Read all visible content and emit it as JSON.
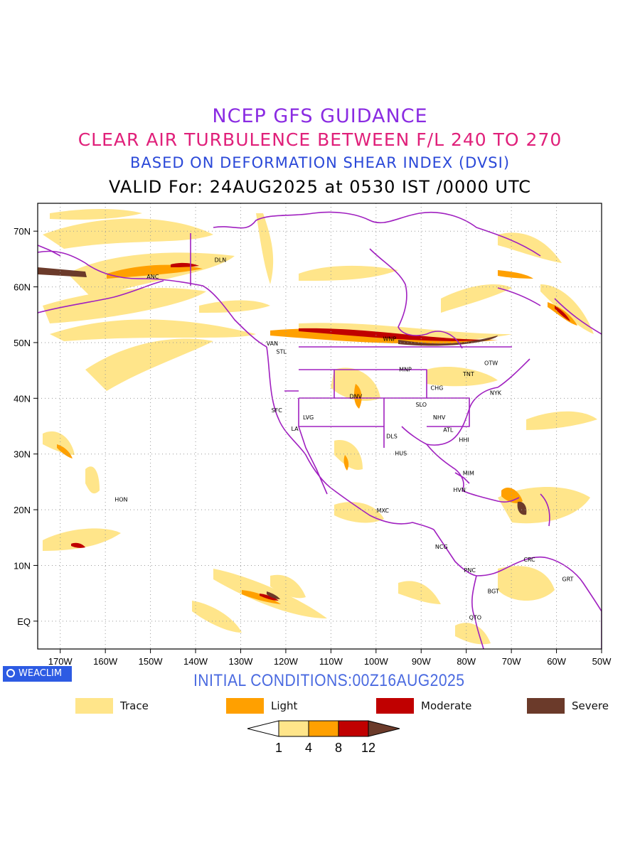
{
  "titles": {
    "line1": "NCEP GFS GUIDANCE",
    "line2": "CLEAR AIR TURBULENCE BETWEEN F/L 240 TO 270",
    "line3": "BASED ON DEFORMATION SHEAR INDEX (DVSI)",
    "line4": "VALID For: 24AUG2025 at 0530 IST /0000 UTC"
  },
  "colors": {
    "trace": "#ffe58a",
    "light": "#ffa000",
    "moderate": "#c00000",
    "severe": "#6b3a2a",
    "borders": "#a020c0"
  },
  "map": {
    "lon_range": [
      -175,
      -50
    ],
    "lat_range": [
      -5,
      75
    ],
    "lat_ticks": [
      {
        "lat": 70,
        "label": "70N"
      },
      {
        "lat": 60,
        "label": "60N"
      },
      {
        "lat": 50,
        "label": "50N"
      },
      {
        "lat": 40,
        "label": "40N"
      },
      {
        "lat": 30,
        "label": "30N"
      },
      {
        "lat": 20,
        "label": "20N"
      },
      {
        "lat": 10,
        "label": "10N"
      },
      {
        "lat": 0,
        "label": "EQ"
      }
    ],
    "lon_ticks": [
      {
        "lon": -170,
        "label": "170W"
      },
      {
        "lon": -160,
        "label": "160W"
      },
      {
        "lon": -150,
        "label": "150W"
      },
      {
        "lon": -140,
        "label": "140W"
      },
      {
        "lon": -130,
        "label": "130W"
      },
      {
        "lon": -120,
        "label": "120W"
      },
      {
        "lon": -110,
        "label": "110W"
      },
      {
        "lon": -100,
        "label": "100W"
      },
      {
        "lon": -90,
        "label": "90W"
      },
      {
        "lon": -80,
        "label": "80W"
      },
      {
        "lon": -70,
        "label": "70W"
      },
      {
        "lon": -60,
        "label": "60W"
      },
      {
        "lon": -50,
        "label": "50W"
      }
    ],
    "stations": [
      {
        "code": "DLN",
        "lon": -134.5,
        "lat": 64.5
      },
      {
        "code": "ANC",
        "lon": -149.5,
        "lat": 61.5
      },
      {
        "code": "VAN",
        "lon": -123.0,
        "lat": 49.5
      },
      {
        "code": "STL",
        "lon": -121.0,
        "lat": 48.0
      },
      {
        "code": "WNP",
        "lon": -97.0,
        "lat": 50.3
      },
      {
        "code": "OTW",
        "lon": -74.5,
        "lat": 46.0
      },
      {
        "code": "TNT",
        "lon": -79.5,
        "lat": 44.0
      },
      {
        "code": "MNP",
        "lon": -93.5,
        "lat": 44.8
      },
      {
        "code": "CHG",
        "lon": -86.5,
        "lat": 41.5
      },
      {
        "code": "NYK",
        "lon": -73.5,
        "lat": 40.6
      },
      {
        "code": "DNV",
        "lon": -104.5,
        "lat": 40.0
      },
      {
        "code": "SFC",
        "lon": -122.0,
        "lat": 37.5
      },
      {
        "code": "SLO",
        "lon": -90.0,
        "lat": 38.5
      },
      {
        "code": "LVG",
        "lon": -115.0,
        "lat": 36.2
      },
      {
        "code": "NHV",
        "lon": -86.0,
        "lat": 36.2
      },
      {
        "code": "LA",
        "lon": -118.0,
        "lat": 34.2
      },
      {
        "code": "ATL",
        "lon": -84.0,
        "lat": 34.0
      },
      {
        "code": "DLS",
        "lon": -96.5,
        "lat": 32.8
      },
      {
        "code": "HHI",
        "lon": -80.5,
        "lat": 32.2
      },
      {
        "code": "HUS",
        "lon": -94.5,
        "lat": 29.8
      },
      {
        "code": "MIM",
        "lon": -79.5,
        "lat": 26.2
      },
      {
        "code": "HVN",
        "lon": -81.5,
        "lat": 23.2
      },
      {
        "code": "HON",
        "lon": -156.5,
        "lat": 21.5
      },
      {
        "code": "MXC",
        "lon": -98.5,
        "lat": 19.5
      },
      {
        "code": "NCG",
        "lon": -85.5,
        "lat": 13.0
      },
      {
        "code": "CRC",
        "lon": -66.0,
        "lat": 10.7
      },
      {
        "code": "PNC",
        "lon": -79.2,
        "lat": 8.8
      },
      {
        "code": "GRT",
        "lon": -57.5,
        "lat": 7.2
      },
      {
        "code": "BGT",
        "lon": -74.0,
        "lat": 5.0
      },
      {
        "code": "QTO",
        "lon": -78.0,
        "lat": 0.3
      }
    ]
  },
  "branding": {
    "badge": "WEACLIM"
  },
  "initial_conditions": "INITIAL CONDITIONS:00Z16AUG2025",
  "legend": {
    "items": [
      {
        "label": "Trace",
        "color": "#ffe58a"
      },
      {
        "label": "Light",
        "color": "#ffa000"
      },
      {
        "label": "Moderate",
        "color": "#c00000"
      },
      {
        "label": "Severe",
        "color": "#6b3a2a"
      }
    ],
    "colorbar_labels": [
      "1",
      "4",
      "8",
      "12"
    ]
  }
}
